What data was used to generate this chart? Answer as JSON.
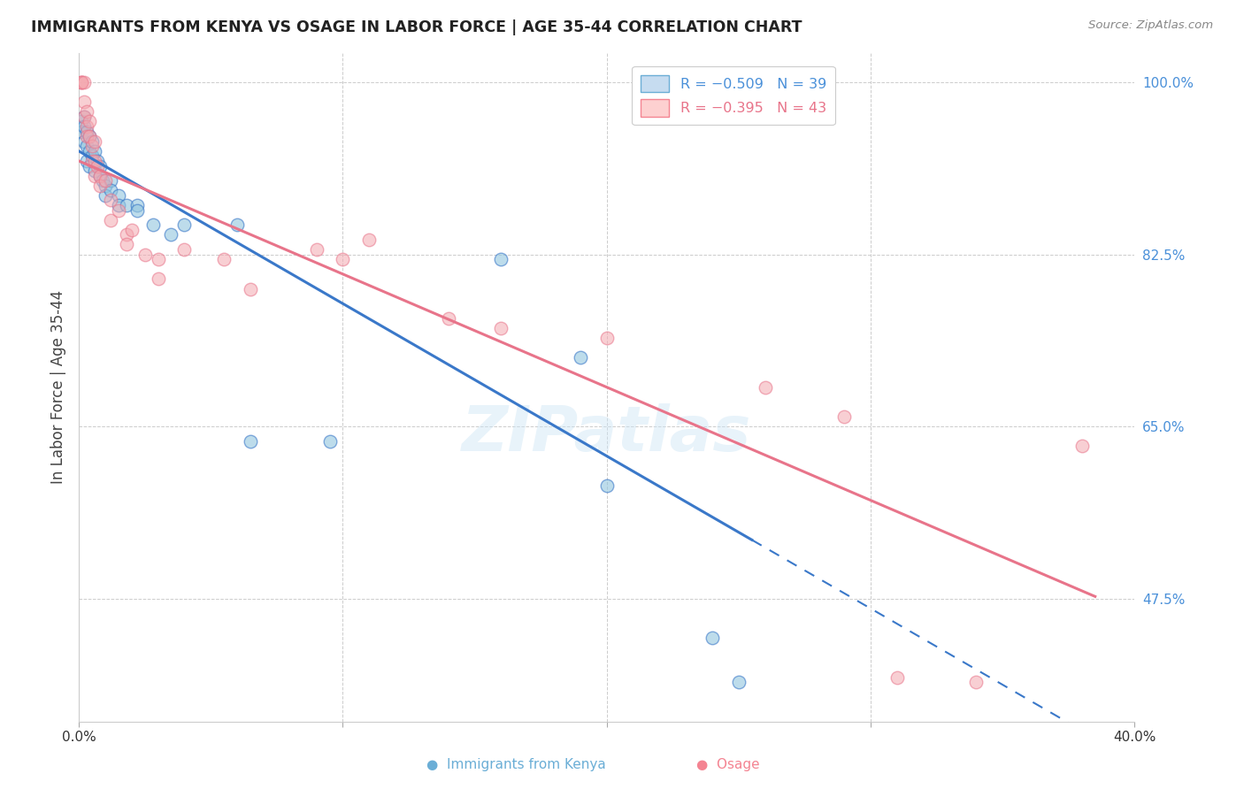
{
  "title": "IMMIGRANTS FROM KENYA VS OSAGE IN LABOR FORCE | AGE 35-44 CORRELATION CHART",
  "source": "Source: ZipAtlas.com",
  "ylabel": "In Labor Force | Age 35-44",
  "xlim": [
    0.0,
    0.4
  ],
  "ylim": [
    0.35,
    1.03
  ],
  "yticks": [
    0.475,
    0.65,
    0.825,
    1.0
  ],
  "ytick_labels": [
    "47.5%",
    "65.0%",
    "82.5%",
    "100.0%"
  ],
  "xticks": [
    0.0,
    0.1,
    0.2,
    0.3,
    0.4
  ],
  "xtick_labels": [
    "0.0%",
    "",
    "",
    "",
    "40.0%"
  ],
  "kenya_points": [
    [
      0.001,
      0.96
    ],
    [
      0.001,
      0.95
    ],
    [
      0.002,
      0.965
    ],
    [
      0.002,
      0.955
    ],
    [
      0.002,
      0.94
    ],
    [
      0.003,
      0.95
    ],
    [
      0.003,
      0.935
    ],
    [
      0.003,
      0.92
    ],
    [
      0.004,
      0.945
    ],
    [
      0.004,
      0.93
    ],
    [
      0.004,
      0.915
    ],
    [
      0.005,
      0.94
    ],
    [
      0.005,
      0.925
    ],
    [
      0.006,
      0.93
    ],
    [
      0.006,
      0.91
    ],
    [
      0.007,
      0.92
    ],
    [
      0.008,
      0.915
    ],
    [
      0.008,
      0.905
    ],
    [
      0.009,
      0.9
    ],
    [
      0.01,
      0.895
    ],
    [
      0.01,
      0.885
    ],
    [
      0.012,
      0.9
    ],
    [
      0.012,
      0.89
    ],
    [
      0.015,
      0.885
    ],
    [
      0.015,
      0.875
    ],
    [
      0.018,
      0.875
    ],
    [
      0.022,
      0.875
    ],
    [
      0.022,
      0.87
    ],
    [
      0.028,
      0.855
    ],
    [
      0.035,
      0.845
    ],
    [
      0.04,
      0.855
    ],
    [
      0.06,
      0.855
    ],
    [
      0.065,
      0.635
    ],
    [
      0.095,
      0.635
    ],
    [
      0.16,
      0.82
    ],
    [
      0.19,
      0.72
    ],
    [
      0.2,
      0.59
    ],
    [
      0.24,
      0.435
    ],
    [
      0.25,
      0.39
    ]
  ],
  "osage_points": [
    [
      0.001,
      1.0
    ],
    [
      0.001,
      1.0
    ],
    [
      0.001,
      1.0
    ],
    [
      0.002,
      1.0
    ],
    [
      0.002,
      0.98
    ],
    [
      0.002,
      0.965
    ],
    [
      0.003,
      0.97
    ],
    [
      0.003,
      0.955
    ],
    [
      0.003,
      0.945
    ],
    [
      0.004,
      0.96
    ],
    [
      0.004,
      0.945
    ],
    [
      0.005,
      0.935
    ],
    [
      0.005,
      0.92
    ],
    [
      0.006,
      0.94
    ],
    [
      0.006,
      0.92
    ],
    [
      0.006,
      0.905
    ],
    [
      0.007,
      0.915
    ],
    [
      0.008,
      0.905
    ],
    [
      0.008,
      0.895
    ],
    [
      0.01,
      0.9
    ],
    [
      0.012,
      0.88
    ],
    [
      0.012,
      0.86
    ],
    [
      0.015,
      0.87
    ],
    [
      0.018,
      0.845
    ],
    [
      0.018,
      0.835
    ],
    [
      0.02,
      0.85
    ],
    [
      0.025,
      0.825
    ],
    [
      0.03,
      0.82
    ],
    [
      0.03,
      0.8
    ],
    [
      0.04,
      0.83
    ],
    [
      0.055,
      0.82
    ],
    [
      0.065,
      0.79
    ],
    [
      0.09,
      0.83
    ],
    [
      0.1,
      0.82
    ],
    [
      0.11,
      0.84
    ],
    [
      0.14,
      0.76
    ],
    [
      0.16,
      0.75
    ],
    [
      0.2,
      0.74
    ],
    [
      0.26,
      0.69
    ],
    [
      0.29,
      0.66
    ],
    [
      0.31,
      0.395
    ],
    [
      0.34,
      0.39
    ],
    [
      0.38,
      0.63
    ]
  ],
  "kenya_color": "#92c5de",
  "osage_color": "#f4a8b0",
  "kenya_line_color": "#3a78c9",
  "osage_line_color": "#e8748a",
  "watermark": "ZIPatlas",
  "background_color": "#ffffff",
  "grid_color": "#cccccc",
  "kenya_line_intercept": 0.93,
  "kenya_line_slope": -1.55,
  "osage_line_intercept": 0.92,
  "osage_line_slope": -1.15
}
